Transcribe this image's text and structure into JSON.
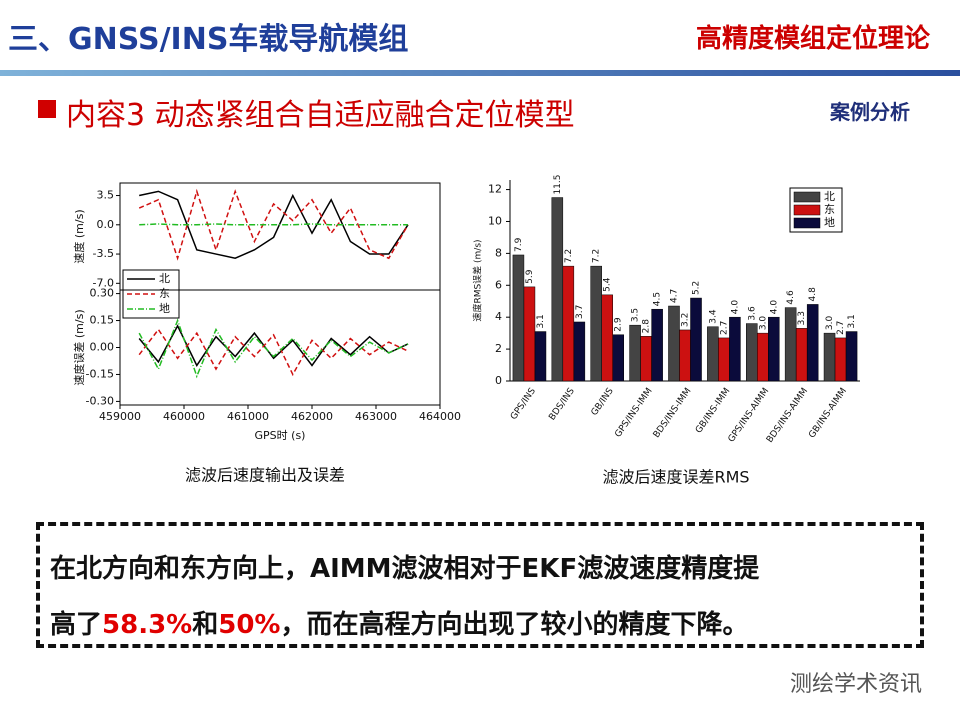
{
  "header": {
    "title": "三、GNSS/INS车载导航模组",
    "subtitle": "高精度模组定位理论"
  },
  "section": {
    "title": "内容3  动态紧组合自适应融合定位模型",
    "tag": "案例分析"
  },
  "captions": [
    "滤波后速度输出及误差",
    "滤波后速度误差RMS"
  ],
  "conclusion": {
    "line1": "在北方向和东方向上，AIMM滤波相对于EKF滤波速度精度提",
    "line2": [
      "高了",
      "58.3%",
      "和",
      "50%",
      "，而在高程方向出现了较小的精度下降。"
    ]
  },
  "watermark": "测绘学术资讯",
  "chart_data": [
    {
      "type": "line",
      "y_label": "速度 (m/s)",
      "legend": "lower left",
      "x": [
        459300,
        459600,
        459900,
        460200,
        460500,
        460800,
        461100,
        461400,
        461700,
        462000,
        462300,
        462600,
        462900,
        463200,
        463500
      ],
      "xlim": [
        459000,
        464000
      ],
      "ylim": [
        -7.8,
        5
      ],
      "yticks": [
        3.5,
        {
          "value": 0,
          "label": "0.0"
        },
        -3.5,
        {
          "value": -7,
          "label": "-7.0"
        }
      ],
      "series": [
        {
          "name": "北",
          "color": "#000000",
          "linestyle": "solid",
          "values": [
            3.5,
            4,
            3,
            -3,
            -3.5,
            -4,
            -3,
            -1.5,
            3.5,
            -1,
            3,
            -2,
            -3.5,
            -3.5,
            0
          ]
        },
        {
          "name": "东",
          "color": "#d01010",
          "linestyle": "dashed",
          "values": [
            2,
            3,
            -4,
            4,
            -3,
            4,
            -2,
            2.5,
            0.5,
            3,
            -1,
            2,
            -3,
            -4,
            0
          ]
        },
        {
          "name": "地",
          "color": "#22bb22",
          "linestyle": "dashdot",
          "values": [
            0,
            0.1,
            0,
            0,
            0.1,
            0,
            0,
            0,
            0,
            0.1,
            0,
            0,
            0,
            0,
            0
          ]
        }
      ]
    },
    {
      "type": "line",
      "y_label": "速度误差 (m/s)",
      "x_label": "GPS时 (s)",
      "x": [
        459300,
        459600,
        459900,
        460200,
        460500,
        460800,
        461100,
        461400,
        461700,
        462000,
        462300,
        462600,
        462900,
        463200,
        463500
      ],
      "xlim": [
        459000,
        464000
      ],
      "ylim": [
        -0.32,
        0.32
      ],
      "xticks": [
        459000,
        460000,
        461000,
        462000,
        463000,
        464000
      ],
      "yticks": [
        {
          "value": 0.3,
          "label": "0.30"
        },
        {
          "value": 0.15,
          "label": "0.15"
        },
        {
          "value": 0,
          "label": "0.00"
        },
        {
          "value": -0.15,
          "label": "-0.15"
        },
        {
          "value": -0.3,
          "label": "-0.30"
        }
      ],
      "series": [
        {
          "name": "北",
          "color": "#000000",
          "linestyle": "solid",
          "values": [
            0.05,
            -0.08,
            0.12,
            -0.1,
            0.06,
            -0.05,
            0.08,
            -0.06,
            0.04,
            -0.1,
            0.05,
            -0.04,
            0.06,
            -0.03,
            0.02
          ]
        },
        {
          "name": "东",
          "color": "#d01010",
          "linestyle": "dashed",
          "values": [
            -0.04,
            0.1,
            -0.06,
            0.08,
            -0.12,
            0.06,
            -0.05,
            0.07,
            -0.15,
            0.04,
            -0.06,
            0.05,
            -0.04,
            0.03,
            -0.02
          ]
        },
        {
          "name": "地",
          "color": "#22bb22",
          "linestyle": "dashdot",
          "values": [
            0.08,
            -0.12,
            0.15,
            -0.16,
            0.1,
            -0.08,
            0.06,
            -0.05,
            0.05,
            -0.07,
            0.04,
            -0.05,
            0.03,
            -0.03,
            0.02
          ]
        }
      ]
    },
    {
      "type": "bar",
      "y_label": "速度RMS误差 (m/s)",
      "legend": "upper right",
      "categories": [
        "GPS/INS",
        "BDS/INS",
        "GB/INS",
        "GPS/INS-IMM",
        "BDS/INS-IMM",
        "GB/INS-IMM",
        "GPS/INS-AIMM",
        "BDS/INS-AIMM",
        "GB/INS-AIMM"
      ],
      "ylim": [
        0,
        12.6
      ],
      "yticks": [
        0,
        2,
        4,
        6,
        8,
        10,
        12
      ],
      "series": [
        {
          "name": "北",
          "color": "#444444",
          "values": [
            7.9,
            11.5,
            7.2,
            3.5,
            4.7,
            3.4,
            3.6,
            4.6,
            3
          ],
          "value_labels": [
            "7.9",
            "11.5",
            "7.2",
            "3.5",
            "4.7",
            "3.4",
            "3.6",
            "4.6",
            "3.0"
          ]
        },
        {
          "name": "东",
          "color": "#cc1111",
          "values": [
            5.9,
            7.2,
            5.4,
            2.8,
            3.2,
            2.7,
            3,
            3.3,
            2.7
          ],
          "value_labels": [
            "5.9",
            "7.2",
            "5.4",
            "2.8",
            "3.2",
            "2.7",
            "3.0",
            "3.3",
            "2.7"
          ]
        },
        {
          "name": "地",
          "color": "#0b0b3b",
          "values": [
            3.1,
            3.7,
            2.9,
            4.5,
            5.2,
            4,
            4,
            4.8,
            3.1
          ],
          "value_labels": [
            "3.1",
            "3.7",
            "2.9",
            "4.5",
            "5.2",
            "4.0",
            "4.0",
            "4.8",
            "3.1"
          ]
        }
      ]
    }
  ]
}
